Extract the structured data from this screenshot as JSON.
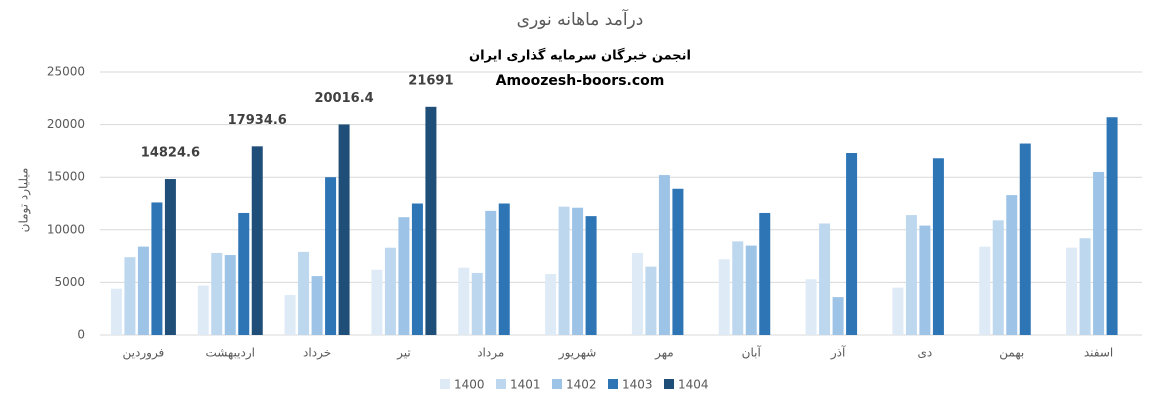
{
  "chart_data": {
    "type": "bar",
    "title": "درآمد ماهانه نوری",
    "subtitle": [
      "انجمن خبرگان سرمایه گذاری ایران",
      "Amoozesh-boors.com"
    ],
    "y_label": "میلیارد تومان",
    "categories": [
      "فروردین",
      "اردیبهشت",
      "خرداد",
      "تیر",
      "مرداد",
      "شهریور",
      "مهر",
      "آبان",
      "آذر",
      "دی",
      "بهمن",
      "اسفند"
    ],
    "series": [
      {
        "name": "1400",
        "color": "#deebf7",
        "values": [
          4400,
          4700,
          3800,
          6200,
          6400,
          5800,
          7800,
          7200,
          5300,
          4500,
          8400,
          8300
        ]
      },
      {
        "name": "1401",
        "color": "#bdd7ee",
        "values": [
          7400,
          7800,
          7900,
          8300,
          5900,
          12200,
          6500,
          8900,
          10600,
          11400,
          10900,
          9200
        ]
      },
      {
        "name": "1402",
        "color": "#9dc3e6",
        "values": [
          8400,
          7600,
          5600,
          11200,
          11800,
          12100,
          15200,
          8500,
          3600,
          10400,
          13300,
          15500
        ]
      },
      {
        "name": "1403",
        "color": "#2e75b6",
        "values": [
          12600,
          11600,
          15000,
          12500,
          12500,
          11300,
          13900,
          11600,
          17300,
          16800,
          18200,
          20700
        ]
      },
      {
        "name": "1404",
        "color": "#1f4e79",
        "values": [
          14824.6,
          17934.6,
          20016.4,
          21691,
          null,
          null,
          null,
          null,
          null,
          null,
          null,
          null
        ],
        "show_labels": true
      }
    ],
    "ylim": [
      0,
      25000
    ],
    "yticks": [
      0,
      5000,
      10000,
      15000,
      20000,
      25000
    ],
    "grid": true,
    "legend": "bottom"
  }
}
